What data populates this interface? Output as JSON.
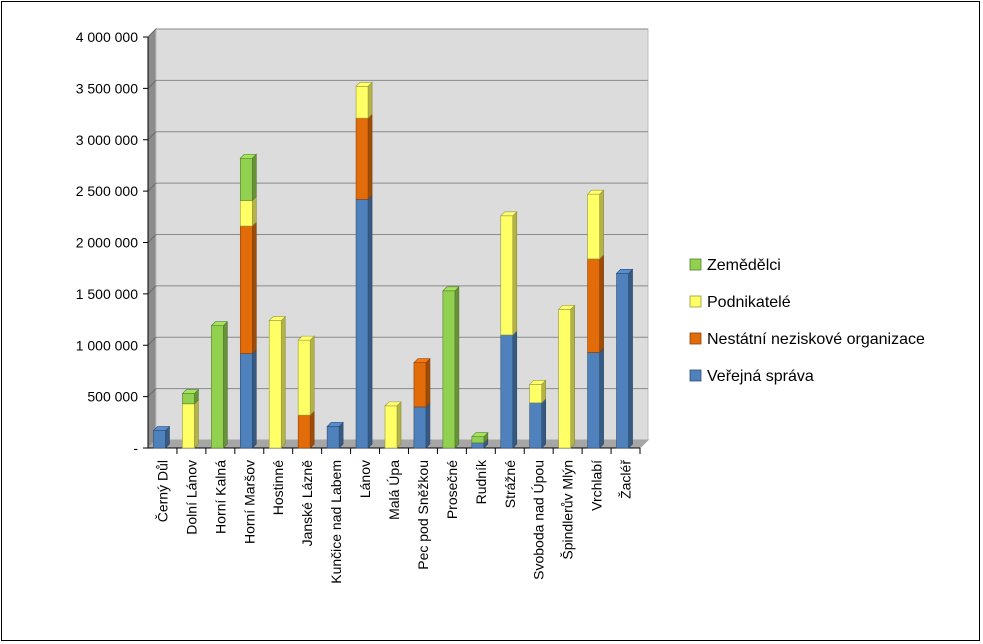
{
  "chart_data": {
    "type": "bar",
    "stacked": true,
    "three_d": true,
    "categories": [
      "Černý Důl",
      "Dolní Lánov",
      "Horní Kalná",
      "Horní Maršov",
      "Hostinné",
      "Janské Lázně",
      "Kunčice nad Labem",
      "Lánov",
      "Malá Úpa",
      "Pec pod Sněžkou",
      "Prosečné",
      "Rudník",
      "Strážné",
      "Svoboda nad Úpou",
      "Špindlerův Mlýn",
      "Vrchlabí",
      "Žacléř"
    ],
    "series": [
      {
        "name": "Veřejná správa",
        "color": "#4F81BD",
        "values": [
          170000,
          0,
          0,
          920000,
          0,
          0,
          210000,
          2420000,
          0,
          400000,
          0,
          50000,
          1100000,
          440000,
          0,
          930000,
          1700000
        ]
      },
      {
        "name": "Nestátní neziskové organizace",
        "color": "#E36C0A",
        "values": [
          0,
          0,
          0,
          1240000,
          0,
          320000,
          0,
          790000,
          0,
          430000,
          0,
          0,
          0,
          0,
          0,
          910000,
          0
        ]
      },
      {
        "name": "Podnikatelé",
        "color": "#FFFF66",
        "values": [
          0,
          430000,
          0,
          250000,
          1240000,
          730000,
          0,
          310000,
          410000,
          0,
          0,
          0,
          1160000,
          180000,
          1350000,
          630000,
          0
        ]
      },
      {
        "name": "Zemědělci",
        "color": "#92D050",
        "values": [
          0,
          100000,
          1190000,
          410000,
          0,
          0,
          0,
          0,
          0,
          0,
          1530000,
          60000,
          0,
          0,
          0,
          0,
          0
        ]
      }
    ],
    "yticks": [
      "-",
      "500 000",
      "1 000 000",
      "1 500 000",
      "2 000 000",
      "2 500 000",
      "3 000 000",
      "3 500 000",
      "4 000 000"
    ],
    "ylim": [
      0,
      4000000
    ],
    "legend": {
      "position": "right",
      "order": [
        "Zemědělci",
        "Podnikatelé",
        "Nestátní neziskové organizace",
        "Veřejná správa"
      ]
    }
  }
}
